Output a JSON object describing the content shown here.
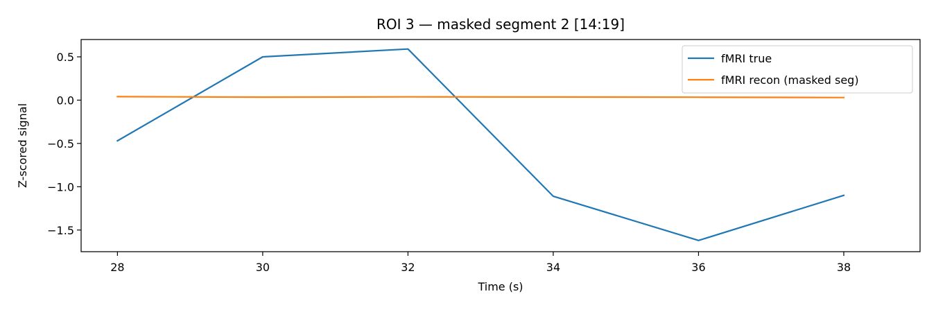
{
  "chart_data": {
    "type": "line",
    "title": "ROI 3 — masked segment 2 [14:19]",
    "xlabel": "Time (s)",
    "ylabel": "Z-scored signal",
    "xlim": [
      27.5,
      39.05
    ],
    "ylim": [
      -1.75,
      0.7
    ],
    "xticks": [
      28,
      30,
      32,
      34,
      36,
      38
    ],
    "xtick_labels": [
      "28",
      "30",
      "32",
      "34",
      "36",
      "38"
    ],
    "yticks": [
      0.5,
      0.0,
      -0.5,
      -1.0,
      -1.5
    ],
    "ytick_labels": [
      "0.5",
      "0.0",
      "−0.5",
      "−1.0",
      "−1.5"
    ],
    "legend_position": "top-right",
    "grid": false,
    "x": [
      28,
      30,
      32,
      34,
      36,
      38
    ],
    "series": [
      {
        "name": "fMRI true",
        "color": "#1f77b4",
        "values": [
          -0.47,
          0.5,
          0.59,
          -1.11,
          -1.62,
          -1.1
        ]
      },
      {
        "name": "fMRI recon (masked seg)",
        "color": "#ff7f0e",
        "values": [
          0.04,
          0.035,
          0.038,
          0.036,
          0.034,
          0.03
        ]
      }
    ]
  }
}
